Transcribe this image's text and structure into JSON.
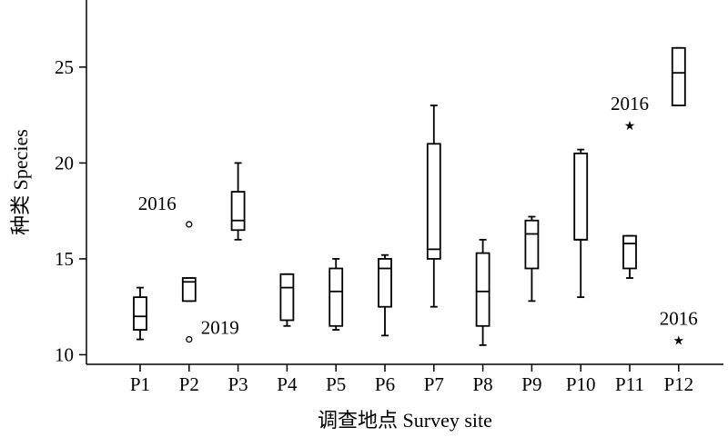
{
  "chart_data": {
    "type": "box",
    "xlabel": "调查地点 Survey site",
    "ylabel": "种类 Species",
    "ylim": [
      9.5,
      28.5
    ],
    "yticks": [
      10,
      15,
      20,
      25
    ],
    "grid": false,
    "categories": [
      "P1",
      "P2",
      "P3",
      "P4",
      "P5",
      "P6",
      "P7",
      "P8",
      "P9",
      "P10",
      "P11",
      "P12"
    ],
    "boxes": [
      {
        "category": "P1",
        "whisker_low": 10.8,
        "q1": 11.3,
        "median": 12.0,
        "q3": 13.0,
        "whisker_high": 13.5
      },
      {
        "category": "P2",
        "whisker_low": 12.8,
        "q1": 12.8,
        "median": 13.8,
        "q3": 14.0,
        "whisker_high": 14.0
      },
      {
        "category": "P3",
        "whisker_low": 16.0,
        "q1": 16.5,
        "median": 17.0,
        "q3": 18.5,
        "whisker_high": 20.0
      },
      {
        "category": "P4",
        "whisker_low": 11.5,
        "q1": 11.8,
        "median": 13.5,
        "q3": 14.2,
        "whisker_high": 14.2
      },
      {
        "category": "P5",
        "whisker_low": 11.3,
        "q1": 11.5,
        "median": 13.3,
        "q3": 14.5,
        "whisker_high": 15.0
      },
      {
        "category": "P6",
        "whisker_low": 11.0,
        "q1": 12.5,
        "median": 14.5,
        "q3": 15.0,
        "whisker_high": 15.2
      },
      {
        "category": "P7",
        "whisker_low": 12.5,
        "q1": 15.0,
        "median": 15.5,
        "q3": 21.0,
        "whisker_high": 23.0
      },
      {
        "category": "P8",
        "whisker_low": 10.5,
        "q1": 11.5,
        "median": 13.3,
        "q3": 15.3,
        "whisker_high": 16.0
      },
      {
        "category": "P9",
        "whisker_low": 12.8,
        "q1": 14.5,
        "median": 16.3,
        "q3": 17.0,
        "whisker_high": 17.2
      },
      {
        "category": "P10",
        "whisker_low": 13.0,
        "q1": 16.0,
        "median": 16.0,
        "q3": 20.5,
        "whisker_high": 20.7
      },
      {
        "category": "P11",
        "whisker_low": 14.0,
        "q1": 14.5,
        "median": 15.8,
        "q3": 16.2,
        "whisker_high": 16.2
      },
      {
        "category": "P12",
        "whisker_low": 23.0,
        "q1": 23.0,
        "median": 24.7,
        "q3": 26.0,
        "whisker_high": 26.0
      }
    ],
    "outliers": [
      {
        "category": "P2",
        "value": 16.8,
        "marker": "circle",
        "label": "2016",
        "label_side": "left"
      },
      {
        "category": "P2",
        "value": 10.8,
        "marker": "circle",
        "label": "2019",
        "label_side": "right"
      },
      {
        "category": "P11",
        "value": 22.0,
        "marker": "star",
        "label": "2016",
        "label_side": "above"
      },
      {
        "category": "P12",
        "value": 10.8,
        "marker": "star",
        "label": "2016",
        "label_side": "above"
      }
    ]
  }
}
